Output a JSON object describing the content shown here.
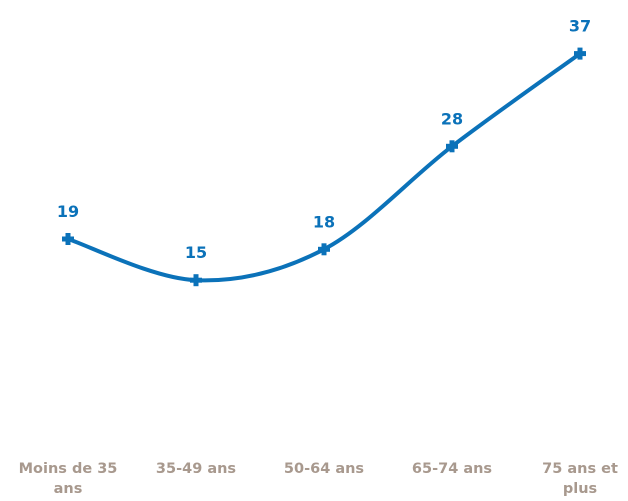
{
  "chart_data": {
    "type": "line",
    "title": "",
    "xlabel": "",
    "ylabel": "",
    "categories": [
      "Moins de 35 ans",
      "35-49 ans",
      "50-64 ans",
      "65-74 ans",
      "75 ans et plus"
    ],
    "category_lines": [
      [
        "Moins de 35",
        "ans"
      ],
      [
        "35-49 ans"
      ],
      [
        "50-64 ans"
      ],
      [
        "65-74 ans"
      ],
      [
        "75 ans et",
        "plus"
      ]
    ],
    "series": [
      {
        "values": [
          19,
          15,
          18,
          28,
          37
        ],
        "color": "#0b72b9"
      }
    ],
    "grid": false,
    "legend": "none",
    "smooth": true
  }
}
